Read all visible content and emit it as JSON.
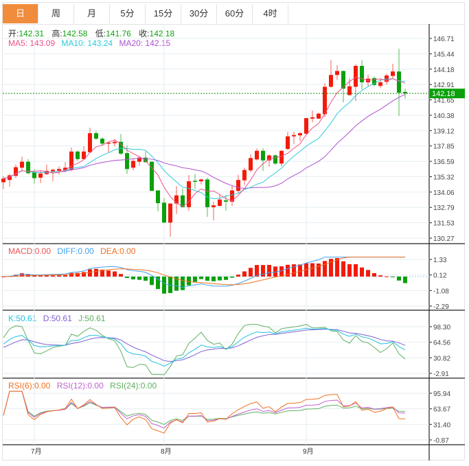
{
  "tabs": [
    "日",
    "周",
    "月",
    "5分",
    "15分",
    "30分",
    "60分",
    "4时"
  ],
  "active_tab": 0,
  "ohlc_legend": {
    "open_label": "开:",
    "open": "142.31",
    "high_label": "高:",
    "high": "142.58",
    "low_label": "低:",
    "low": "141.76",
    "close_label": "收:",
    "close": "142.18"
  },
  "ma_legend": {
    "ma5": "MA5: 143.09",
    "ma10": "MA10: 143.24",
    "ma20": "MA20: 142.15"
  },
  "macd_legend": {
    "macd": "MACD:0.00",
    "diff": "DIFF:0.00",
    "dea": "DEA:0.00"
  },
  "kdj_legend": {
    "k": "K:50.61",
    "d": "D:50.61",
    "j": "J:50.61"
  },
  "rsi_legend": {
    "rsi6": "RSI(6):0.00",
    "rsi12": "RSI(12):0.00",
    "rsi24": "RSI(24):0.00"
  },
  "colors": {
    "up": "#f21b0b",
    "down": "#0aa00a",
    "ma5": "#f0508a",
    "ma10": "#2ec8dc",
    "ma20": "#b050d0",
    "diff": "#40a0f0",
    "dea": "#f07020",
    "k": "#20c0e0",
    "d": "#8060d0",
    "j": "#60b060",
    "rsi6": "#f07020",
    "rsi12": "#c060d0",
    "rsi24": "#60b060",
    "active_tab": "#f08c3c"
  },
  "chart_data": {
    "type": "candlestick",
    "current_price": "142.18",
    "price_axis": {
      "ticks": [
        "146.71",
        "145.44",
        "144.18",
        "142.91",
        "141.65",
        "140.38",
        "139.12",
        "137.85",
        "136.59",
        "135.32",
        "134.06",
        "132.79",
        "131.53",
        "130.27"
      ],
      "range": [
        130.27,
        146.71
      ]
    },
    "macd_axis": {
      "ticks": [
        "1.33",
        "0.12",
        "-1.08",
        "-2.29"
      ],
      "range": [
        -2.29,
        1.33
      ]
    },
    "kdj_axis": {
      "ticks": [
        "98.30",
        "64.56",
        "30.82",
        "-2.91"
      ],
      "range": [
        -2.91,
        98.3
      ]
    },
    "rsi_axis": {
      "ticks": [
        "95.94",
        "63.67",
        "31.40",
        "-0.87"
      ],
      "range": [
        -0.87,
        95.94
      ]
    },
    "x_labels": [
      {
        "label": "7月",
        "index": 5
      },
      {
        "label": "8月",
        "index": 26
      },
      {
        "label": "9月",
        "index": 49
      }
    ],
    "ohlc": [
      [
        134.87,
        135.37,
        134.31,
        135.17
      ],
      [
        135.06,
        135.55,
        134.5,
        135.44
      ],
      [
        135.4,
        136.33,
        135.21,
        136.11
      ],
      [
        136.07,
        136.97,
        135.77,
        136.56
      ],
      [
        136.56,
        136.78,
        135.51,
        135.62
      ],
      [
        135.7,
        135.92,
        134.76,
        135.21
      ],
      [
        135.25,
        135.77,
        134.8,
        135.59
      ],
      [
        135.55,
        136.33,
        135.47,
        135.81
      ],
      [
        135.77,
        135.99,
        134.95,
        135.9
      ],
      [
        135.81,
        136.18,
        135.51,
        135.96
      ],
      [
        135.88,
        136.52,
        135.77,
        136.07
      ],
      [
        135.88,
        137.72,
        135.77,
        137.4
      ],
      [
        137.4,
        137.49,
        136.63,
        136.78
      ],
      [
        136.78,
        137.83,
        136.71,
        137.4
      ],
      [
        137.34,
        139.36,
        137.27,
        138.91
      ],
      [
        138.91,
        139.1,
        138.35,
        138.46
      ],
      [
        138.46,
        138.58,
        137.87,
        138.05
      ],
      [
        138.05,
        138.24,
        137.31,
        138.13
      ],
      [
        138.09,
        138.43,
        137.83,
        138.2
      ],
      [
        138.2,
        138.84,
        137.12,
        137.23
      ],
      [
        137.27,
        137.9,
        135.55,
        135.96
      ],
      [
        136.07,
        136.78,
        135.85,
        136.63
      ],
      [
        136.56,
        136.97,
        136.22,
        136.9
      ],
      [
        136.9,
        137.42,
        136.52,
        136.52
      ],
      [
        136.56,
        136.56,
        134.16,
        134.16
      ],
      [
        134.2,
        134.2,
        132.48,
        133.15
      ],
      [
        133.19,
        133.57,
        131.55,
        131.55
      ],
      [
        131.55,
        133.12,
        130.38,
        133.12
      ],
      [
        133.12,
        134.54,
        132.26,
        133.79
      ],
      [
        133.79,
        134.35,
        132.82,
        132.82
      ],
      [
        132.82,
        135.48,
        132.52,
        134.95
      ],
      [
        134.99,
        135.55,
        134.31,
        134.95
      ],
      [
        134.95,
        135.17,
        134.69,
        135.1
      ],
      [
        135.1,
        135.25,
        132.03,
        132.82
      ],
      [
        132.82,
        133.27,
        131.73,
        132.97
      ],
      [
        132.93,
        133.87,
        132.86,
        133.45
      ],
      [
        133.38,
        133.83,
        132.52,
        133.27
      ],
      [
        133.27,
        134.61,
        132.93,
        134.2
      ],
      [
        134.16,
        135.48,
        133.98,
        135.06
      ],
      [
        135.03,
        136.07,
        134.65,
        135.88
      ],
      [
        135.85,
        137.19,
        135.7,
        136.86
      ],
      [
        136.75,
        137.64,
        136.67,
        137.46
      ],
      [
        137.46,
        137.68,
        135.81,
        136.67
      ],
      [
        136.67,
        137.16,
        136.15,
        137.08
      ],
      [
        137.08,
        137.16,
        136.3,
        136.41
      ],
      [
        136.41,
        137.53,
        136.18,
        137.46
      ],
      [
        137.61,
        139.02,
        137.53,
        138.65
      ],
      [
        138.65,
        139.02,
        138.02,
        138.76
      ],
      [
        138.73,
        139.02,
        138.24,
        138.91
      ],
      [
        138.87,
        140.15,
        138.76,
        140.15
      ],
      [
        140.11,
        140.78,
        139.81,
        140.22
      ],
      [
        140.11,
        140.6,
        140.08,
        140.52
      ],
      [
        140.48,
        143.02,
        140.22,
        142.73
      ],
      [
        142.73,
        144.93,
        142.66,
        143.7
      ],
      [
        143.7,
        144.52,
        143.29,
        144.03
      ],
      [
        144.03,
        144.07,
        141.45,
        142.58
      ],
      [
        142.05,
        143.44,
        141.98,
        142.77
      ],
      [
        142.73,
        144.59,
        141.57,
        144.45
      ],
      [
        144.45,
        144.93,
        142.5,
        143.1
      ],
      [
        143.1,
        143.74,
        142.8,
        143.4
      ],
      [
        143.44,
        143.59,
        142.8,
        142.88
      ],
      [
        142.8,
        143.36,
        142.62,
        143.1
      ],
      [
        143.14,
        143.81,
        142.91,
        143.66
      ],
      [
        143.62,
        144.63,
        143.36,
        143.99
      ],
      [
        143.99,
        145.86,
        140.33,
        142.24
      ],
      [
        142.31,
        142.58,
        141.76,
        142.18
      ]
    ]
  }
}
